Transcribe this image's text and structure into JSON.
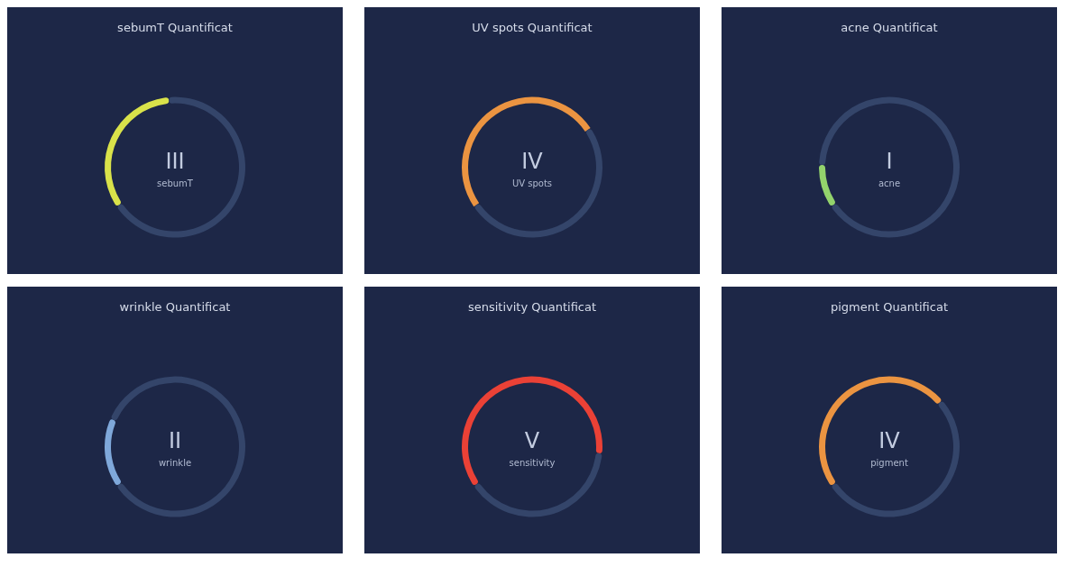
{
  "chart_data": [
    {
      "type": "donut",
      "title": "sebumT Quantificat",
      "categories": [
        null,
        null
      ],
      "values": [
        33,
        67
      ],
      "colors": [
        "#d9e24a",
        "#34456a"
      ],
      "annotations": [
        "III",
        "sebumT"
      ]
    },
    {
      "type": "donut",
      "title": "UV spots Quantificat",
      "categories": [
        null,
        null
      ],
      "values": [
        50,
        50
      ],
      "colors": [
        "#eb9441",
        "#34456a"
      ],
      "annotations": [
        "IV",
        "UV spots"
      ]
    },
    {
      "type": "donut",
      "title": "acne Quantificat",
      "categories": [
        null,
        null
      ],
      "values": [
        10,
        90
      ],
      "colors": [
        "#93d36c",
        "#34456a"
      ],
      "annotations": [
        "I",
        "acne"
      ]
    },
    {
      "type": "donut",
      "title": "wrinkle Quantificat",
      "categories": [
        null,
        null
      ],
      "values": [
        16,
        84
      ],
      "colors": [
        "#7fa8da",
        "#34456a"
      ],
      "annotations": [
        "II",
        "wrinkle"
      ]
    },
    {
      "type": "donut",
      "title": "sensitivity Quantificat",
      "categories": [
        null,
        null
      ],
      "values": [
        61,
        39
      ],
      "colors": [
        "#ea4136",
        "#34456a"
      ],
      "annotations": [
        "V",
        "sensitivity"
      ]
    },
    {
      "type": "donut",
      "title": "pigment Quantificat",
      "categories": [
        null,
        null
      ],
      "values": [
        48,
        52
      ],
      "colors": [
        "#eb9441",
        "#34456a"
      ],
      "annotations": [
        "IV",
        "pigment"
      ]
    }
  ]
}
